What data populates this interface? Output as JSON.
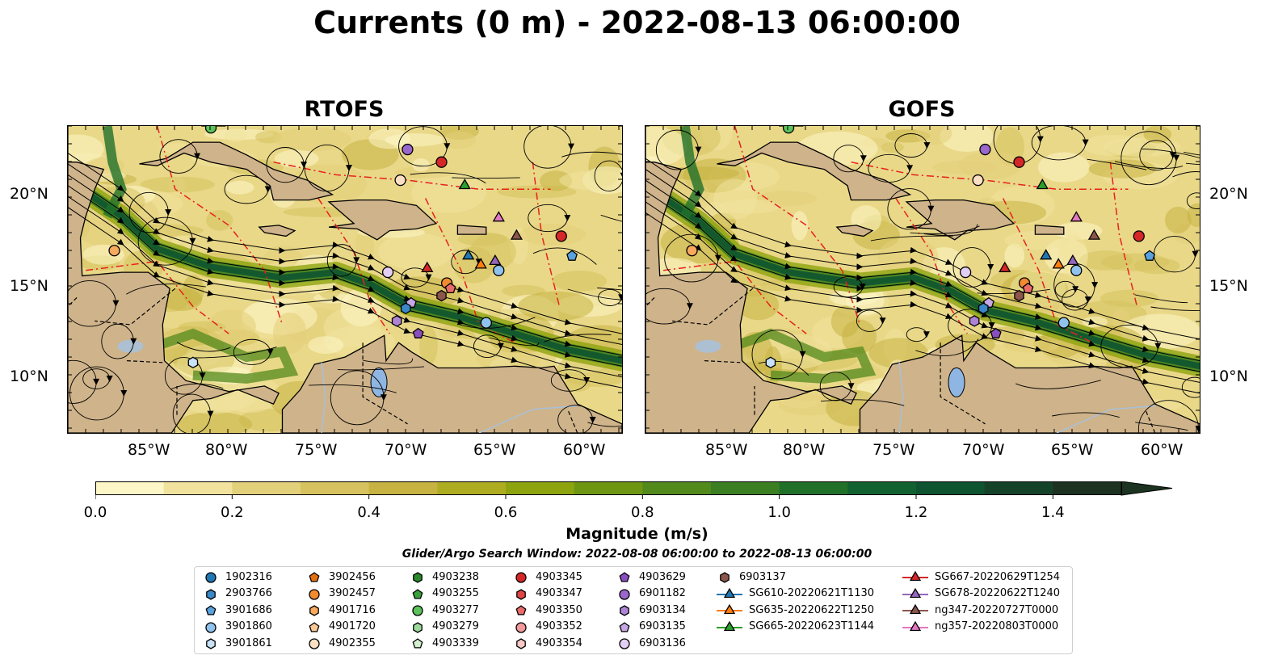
{
  "title": "Currents (0 m) - 2022-08-13 06:00:00",
  "panels": [
    {
      "title": "RTOFS"
    },
    {
      "title": "GOFS"
    }
  ],
  "lon_labels": [
    "85°W",
    "80°W",
    "75°W",
    "70°W",
    "65°W",
    "60°W"
  ],
  "lat_labels": [
    "20°N",
    "15°N",
    "10°N"
  ],
  "colorbar": {
    "label": "Magnitude (m/s)",
    "ticks": [
      "0.0",
      "0.2",
      "0.4",
      "0.6",
      "0.8",
      "1.0",
      "1.2",
      "1.4"
    ],
    "range": [
      0,
      1.5
    ],
    "colors": [
      "#fdf6c6",
      "#f1e39e",
      "#e3d07a",
      "#d6c25e",
      "#c6b341",
      "#aead22",
      "#8ea40f",
      "#6f9613",
      "#538a1c",
      "#3b7f22",
      "#21702a",
      "#116230",
      "#0e5430",
      "#15432a",
      "#1b3320"
    ]
  },
  "search_window": "Glider/Argo Search Window: 2022-08-08 06:00:00 to 2022-08-13 06:00:00",
  "legend": {
    "columns": [
      [
        {
          "label": "1902316",
          "marker": "circle",
          "color": "#1f77b4"
        },
        {
          "label": "2903766",
          "marker": "hexagon",
          "color": "#3a88c7"
        },
        {
          "label": "3901686",
          "marker": "pentagon",
          "color": "#5aa2dd"
        },
        {
          "label": "3901860",
          "marker": "circle",
          "color": "#8fc2ec"
        },
        {
          "label": "3901861",
          "marker": "hexagon",
          "color": "#c8e2f7"
        }
      ],
      [
        {
          "label": "3902456",
          "marker": "pentagon",
          "color": "#e6700e"
        },
        {
          "label": "3902457",
          "marker": "circle",
          "color": "#f28b30"
        },
        {
          "label": "4901716",
          "marker": "hexagon",
          "color": "#f7a95e"
        },
        {
          "label": "4901720",
          "marker": "pentagon",
          "color": "#fbc795"
        },
        {
          "label": "4902355",
          "marker": "circle",
          "color": "#fde0c4"
        }
      ],
      [
        {
          "label": "4903238",
          "marker": "hexagon",
          "color": "#2a8a2a"
        },
        {
          "label": "4903255",
          "marker": "pentagon",
          "color": "#3aa03a"
        },
        {
          "label": "4903277",
          "marker": "circle",
          "color": "#5cc25c"
        },
        {
          "label": "4903279",
          "marker": "hexagon",
          "color": "#9ad99a"
        },
        {
          "label": "4903339",
          "marker": "pentagon",
          "color": "#d4f0d0"
        }
      ],
      [
        {
          "label": "4903345",
          "marker": "circle",
          "color": "#d62728"
        },
        {
          "label": "4903347",
          "marker": "hexagon",
          "color": "#e04545"
        },
        {
          "label": "4903350",
          "marker": "pentagon",
          "color": "#ea6a6a"
        },
        {
          "label": "4903352",
          "marker": "circle",
          "color": "#f29a9a"
        },
        {
          "label": "4903354",
          "marker": "hexagon",
          "color": "#f8c8c8"
        }
      ],
      [
        {
          "label": "4903629",
          "marker": "pentagon",
          "color": "#8a4fbf"
        },
        {
          "label": "6901182",
          "marker": "circle",
          "color": "#9a67cc"
        },
        {
          "label": "6903134",
          "marker": "hexagon",
          "color": "#ad84d6"
        },
        {
          "label": "6903135",
          "marker": "pentagon",
          "color": "#c6a8e4"
        },
        {
          "label": "6903136",
          "marker": "circle",
          "color": "#e3cff3"
        }
      ],
      [
        {
          "label": "6903137",
          "marker": "hexagon",
          "color": "#8c564b"
        },
        {
          "label": "SG610-20220621T1130",
          "marker": "triangle",
          "color": "#1f77b4",
          "line": true
        },
        {
          "label": "SG635-20220622T1250",
          "marker": "triangle",
          "color": "#ff7f0e",
          "line": true
        },
        {
          "label": "SG665-20220623T1144",
          "marker": "triangle",
          "color": "#2ca02c",
          "line": true
        }
      ],
      [
        {
          "label": "SG667-20220629T1254",
          "marker": "triangle",
          "color": "#d62728",
          "line": true
        },
        {
          "label": "SG678-20220622T1240",
          "marker": "triangle",
          "color": "#9467bd",
          "line": true
        },
        {
          "label": "ng347-20220727T0000",
          "marker": "triangle",
          "color": "#8c564b",
          "line": true
        },
        {
          "label": "ng357-20220803T0000",
          "marker": "triangle",
          "color": "#e377c2",
          "line": true
        }
      ]
    ]
  }
}
